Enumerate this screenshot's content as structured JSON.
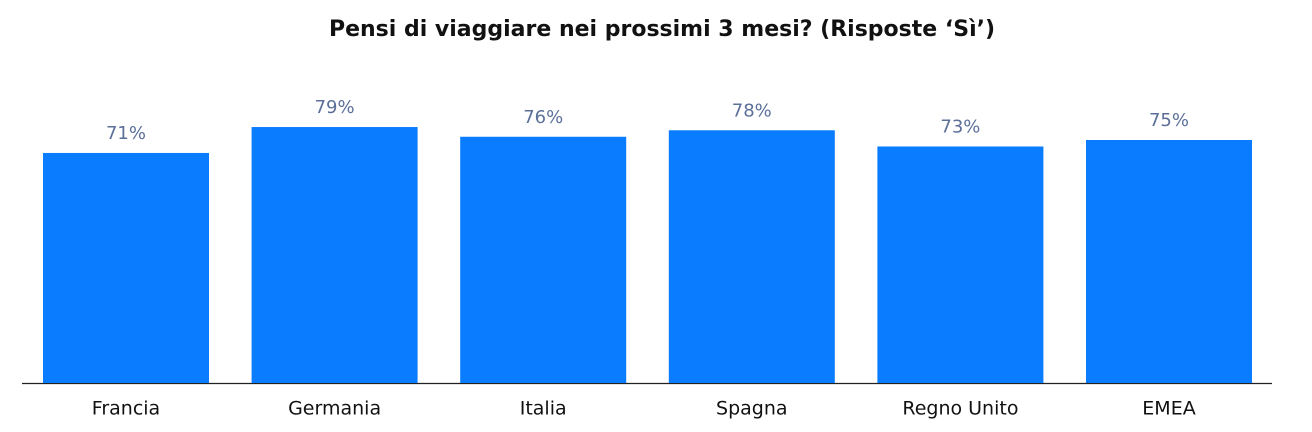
{
  "chart_data": {
    "type": "bar",
    "title": "Pensi di viaggiare nei prossimi 3 mesi? (Risposte ‘Sì’)",
    "categories": [
      "Francia",
      "Germania",
      "Italia",
      "Spagna",
      "Regno Unito",
      "EMEA"
    ],
    "values": [
      71,
      79,
      76,
      78,
      73,
      75
    ],
    "value_labels": [
      "71%",
      "79%",
      "76%",
      "78%",
      "73%",
      "75%"
    ],
    "color": "#0a7cff"
  }
}
